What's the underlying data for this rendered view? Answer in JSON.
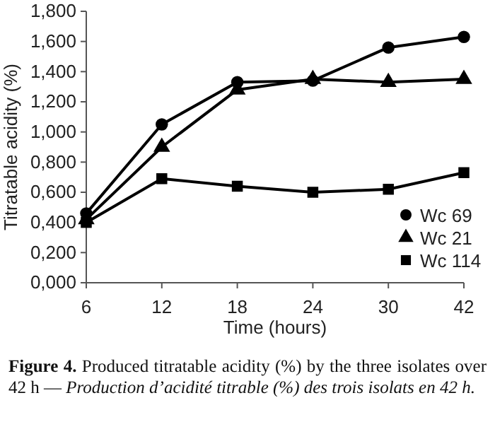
{
  "chart_data": {
    "type": "line",
    "xlabel": "Time (hours)",
    "ylabel": "Titratable acidity (%)",
    "categories": [
      "6",
      "12",
      "18",
      "24",
      "30",
      "42"
    ],
    "series": [
      {
        "name": "Wc 69",
        "color": "#000000",
        "marker": "circle",
        "values": [
          0.46,
          1.05,
          1.33,
          1.34,
          1.56,
          1.63
        ]
      },
      {
        "name": "Wc 21",
        "color": "#000000",
        "marker": "triangle",
        "values": [
          0.42,
          0.9,
          1.28,
          1.35,
          1.33,
          1.35
        ]
      },
      {
        "name": "Wc 114",
        "color": "#000000",
        "marker": "square",
        "values": [
          0.4,
          0.69,
          0.64,
          0.6,
          0.62,
          0.73
        ]
      }
    ],
    "ylim": [
      0,
      1.8
    ],
    "yticks": [
      {
        "value": 0,
        "label": "0,000"
      },
      {
        "value": 0.2,
        "label": "0,200"
      },
      {
        "value": 0.4,
        "label": "0,400"
      },
      {
        "value": 0.6,
        "label": "0,600"
      },
      {
        "value": 0.8,
        "label": "0,800"
      },
      {
        "value": 1.0,
        "label": "1,000"
      },
      {
        "value": 1.2,
        "label": "1,200"
      },
      {
        "value": 1.4,
        "label": "1,400"
      },
      {
        "value": 1.6,
        "label": "1,600"
      },
      {
        "value": 1.8,
        "label": "1,800"
      }
    ],
    "legend": "bottom right",
    "grid": false,
    "line_style": "solid",
    "annotations": [
      "Figure 4.",
      "Produced titratable acidity (%) by the three isolates over 42 h — ",
      "Production d’acidité titrable (%) des trois isolats en 42 h."
    ]
  }
}
